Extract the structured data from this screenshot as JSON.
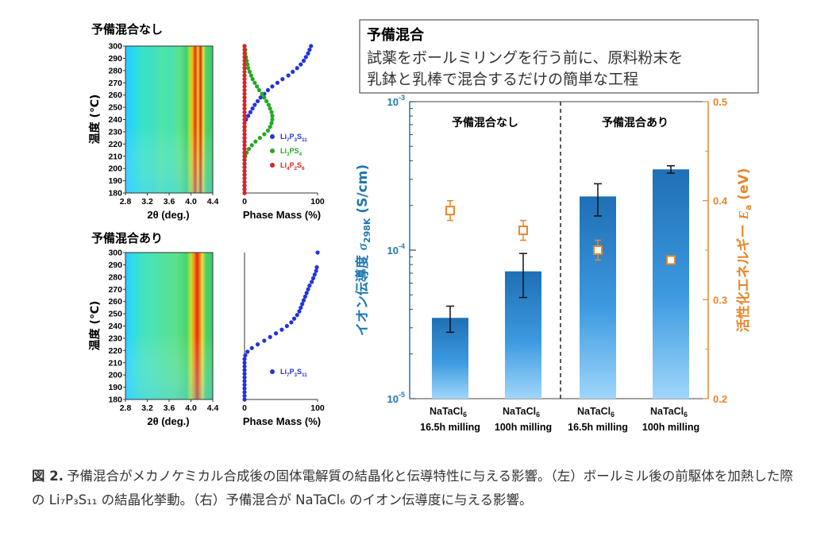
{
  "chart_data": [
    {
      "type": "heatmap",
      "title": "予備混合なし",
      "xlabel": "2θ (deg.)",
      "ylabel": "温度 (℃)",
      "xticks": [
        "2.8",
        "3.2",
        "3.6",
        "4.0",
        "4.4"
      ],
      "yticks": [
        "180",
        "190",
        "200",
        "210",
        "220",
        "230",
        "240",
        "250",
        "260",
        "270",
        "280",
        "290",
        "300"
      ],
      "xlim": [
        2.8,
        4.4
      ],
      "ylim": [
        180,
        300
      ]
    },
    {
      "type": "scatter",
      "xlabel": "Phase Mass (%)",
      "xticks": [
        "0",
        "100"
      ],
      "xlim": [
        0,
        100
      ],
      "ylim": [
        180,
        300
      ],
      "legend_position": "bottom-right",
      "series": [
        {
          "name": "Li7P3S11",
          "label": [
            "Li",
            "7",
            "P",
            "3",
            "S",
            "11"
          ],
          "color": "#2233dd",
          "x": [
            0,
            0,
            0,
            0,
            0,
            0,
            0,
            0,
            0,
            0,
            0,
            0,
            0,
            0,
            0,
            0,
            0,
            0,
            0,
            0,
            2,
            5,
            8,
            11,
            14,
            18,
            22,
            27,
            32,
            38,
            45,
            52,
            60,
            66,
            72,
            77,
            81,
            84,
            87,
            89,
            91
          ],
          "y": [
            180,
            183,
            186,
            189,
            192,
            195,
            198,
            201,
            204,
            207,
            210,
            213,
            216,
            219,
            222,
            225,
            228,
            231,
            234,
            237,
            240,
            243,
            246,
            249,
            252,
            255,
            258,
            261,
            264,
            267,
            270,
            273,
            276,
            279,
            282,
            285,
            288,
            291,
            294,
            297,
            300
          ]
        },
        {
          "name": "Li3PS4",
          "label": [
            "Li",
            "3",
            "PS",
            "4"
          ],
          "color": "#22aa22",
          "x": [
            0,
            0,
            0,
            0,
            0,
            0,
            0,
            0,
            0,
            0,
            1,
            3,
            6,
            10,
            15,
            21,
            27,
            32,
            35,
            37,
            38,
            38,
            37,
            35,
            33,
            30,
            27,
            24,
            20,
            17,
            14,
            11,
            9,
            7,
            5,
            4,
            3,
            2,
            1,
            1,
            0
          ],
          "y": [
            180,
            183,
            186,
            189,
            192,
            195,
            198,
            201,
            204,
            207,
            210,
            213,
            216,
            219,
            222,
            225,
            228,
            231,
            234,
            237,
            240,
            243,
            246,
            249,
            252,
            255,
            258,
            261,
            264,
            267,
            270,
            273,
            276,
            279,
            282,
            285,
            288,
            291,
            294,
            297,
            300
          ]
        },
        {
          "name": "Li4P2S6",
          "label": [
            "Li",
            "4",
            "P",
            "2",
            "S",
            "6"
          ],
          "color": "#dd2222",
          "x": [
            0,
            0,
            0,
            0,
            0,
            0,
            0,
            0,
            0,
            0,
            0,
            0,
            0,
            0,
            0,
            0,
            0,
            0,
            0,
            0,
            0,
            0,
            0,
            0,
            0,
            0,
            0,
            0,
            0,
            0,
            0,
            0,
            0,
            0,
            0,
            0,
            0,
            0,
            0,
            0,
            0
          ],
          "y": [
            180,
            183,
            186,
            189,
            192,
            195,
            198,
            201,
            204,
            207,
            210,
            213,
            216,
            219,
            222,
            225,
            228,
            231,
            234,
            237,
            240,
            243,
            246,
            249,
            252,
            255,
            258,
            261,
            264,
            267,
            270,
            273,
            276,
            279,
            282,
            285,
            288,
            291,
            294,
            297,
            300
          ]
        }
      ]
    },
    {
      "type": "heatmap",
      "title": "予備混合あり",
      "xlabel": "2θ (deg.)",
      "ylabel": "温度 (℃)",
      "xticks": [
        "2.8",
        "3.2",
        "3.6",
        "4.0",
        "4.4"
      ],
      "yticks": [
        "180",
        "190",
        "200",
        "210",
        "220",
        "230",
        "240",
        "250",
        "260",
        "270",
        "280",
        "290",
        "300"
      ],
      "xlim": [
        2.8,
        4.4
      ],
      "ylim": [
        180,
        300
      ]
    },
    {
      "type": "scatter",
      "xlabel": "Phase Mass (%)",
      "xticks": [
        "0",
        "100"
      ],
      "xlim": [
        0,
        100
      ],
      "ylim": [
        180,
        300
      ],
      "legend_position": "bottom-right",
      "series": [
        {
          "name": "Li7P3S11",
          "label": [
            "Li",
            "7",
            "P",
            "3",
            "S",
            "11"
          ],
          "color": "#2233dd",
          "x": [
            0,
            0,
            0,
            0,
            0,
            0,
            0,
            0,
            0,
            0,
            0,
            0,
            1,
            4,
            10,
            18,
            27,
            35,
            43,
            51,
            58,
            64,
            68,
            72,
            75,
            77,
            79,
            81,
            83,
            85,
            87,
            89,
            92,
            94,
            96,
            98,
            99,
            100
          ],
          "y": [
            180,
            183,
            186,
            189,
            192,
            195,
            198,
            201,
            204,
            207,
            210,
            213,
            216,
            219,
            222,
            225,
            228,
            231,
            234,
            237,
            240,
            243,
            246,
            249,
            252,
            255,
            258,
            261,
            264,
            267,
            270,
            273,
            276,
            279,
            282,
            285,
            288,
            300
          ]
        }
      ]
    },
    {
      "type": "bar",
      "categories": [
        [
          "NaTaCl",
          "6",
          "16.5h milling"
        ],
        [
          "NaTaCl",
          "6",
          "100h milling"
        ],
        [
          "NaTaCl",
          "6",
          "16.5h milling"
        ],
        [
          "NaTaCl",
          "6",
          "100h milling"
        ]
      ],
      "ylabel": [
        "イオン伝導度 ",
        "σ",
        "298K",
        " (S/cm)"
      ],
      "y2label": [
        "活性化エネルギー ",
        "E",
        "a",
        " (eV)"
      ],
      "yscale": "log",
      "ylim": [
        1e-05,
        0.001
      ],
      "yticks": [
        [
          "10",
          "-5"
        ],
        [
          "10",
          "-4"
        ],
        [
          "10",
          "-3"
        ]
      ],
      "y2lim": [
        0.2,
        0.5
      ],
      "y2ticks": [
        "0.2",
        "0.3",
        "0.4",
        "0.5"
      ],
      "group_labels": [
        "予備混合なし",
        "予備混合あり"
      ],
      "conductivity": {
        "values": [
          3.5e-05,
          7.2e-05,
          0.00023,
          0.00035
        ],
        "err_low": [
          2.8e-05,
          4.8e-05,
          0.00017,
          0.00033
        ],
        "err_high": [
          4.2e-05,
          9.5e-05,
          0.00028,
          0.00037
        ],
        "color": "#1f6fb5"
      },
      "activation_energy": {
        "values": [
          0.39,
          0.37,
          0.35,
          0.34
        ],
        "err": [
          0.01,
          0.01,
          0.01,
          0.0
        ],
        "color": "#e8862a"
      },
      "axis_colors": {
        "left": "#1f78b4",
        "right": "#e8862a"
      }
    }
  ],
  "note_box": {
    "title": "予備混合",
    "line1": "試薬をボールミリングを行う前に、原料粉末を",
    "line2": "乳鉢と乳棒で混合するだけの簡単な工程"
  },
  "caption": {
    "label": "図 2.",
    "text": "予備混合がメカノケミカル合成後の固体電解質の結晶化と伝導特性に与える影響。（左）ボールミル後の前駆体を加熱した際の Li₇P₃S₁₁ の結晶化挙動。（右）予備混合が NaTaCl₆ のイオン伝導度に与える影響。"
  }
}
